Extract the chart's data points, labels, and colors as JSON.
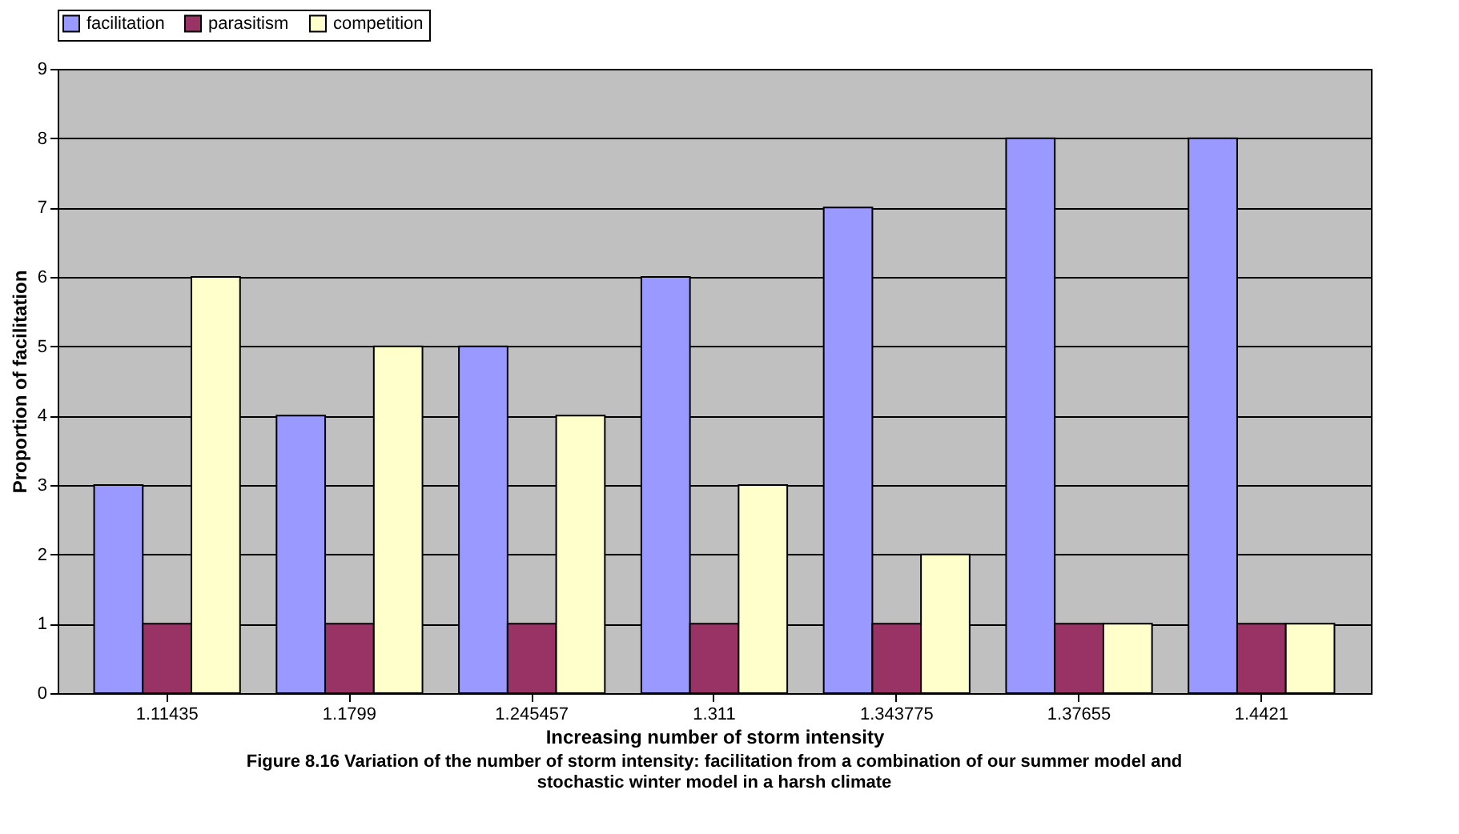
{
  "chart_data": {
    "type": "bar",
    "xlabel": "Increasing number of storm intensity",
    "ylabel": "Proportion of facilitation",
    "categories": [
      "1.11435",
      "1.1799",
      "1.245457",
      "1.311",
      "1.343775",
      "1.37655",
      "1.4421"
    ],
    "series": [
      {
        "name": "facilitation",
        "color": "#9999ff",
        "values": [
          3,
          4,
          5,
          6,
          7,
          8,
          8
        ]
      },
      {
        "name": "parasitism",
        "color": "#993366",
        "values": [
          1,
          1,
          1,
          1,
          1,
          1,
          1
        ]
      },
      {
        "name": "competition",
        "color": "#ffffcc",
        "values": [
          6,
          5,
          4,
          3,
          2,
          1,
          1
        ]
      }
    ],
    "ylim": [
      0,
      9
    ],
    "yticks": [
      0,
      1,
      2,
      3,
      4,
      5,
      6,
      7,
      8,
      9
    ],
    "grid": "y",
    "legend": "top",
    "annotations": [
      "Figure 8.16 Variation of the number of storm intensity: facilitation from a combination of our summer model and",
      "stochastic winter model in a harsh climate"
    ]
  }
}
